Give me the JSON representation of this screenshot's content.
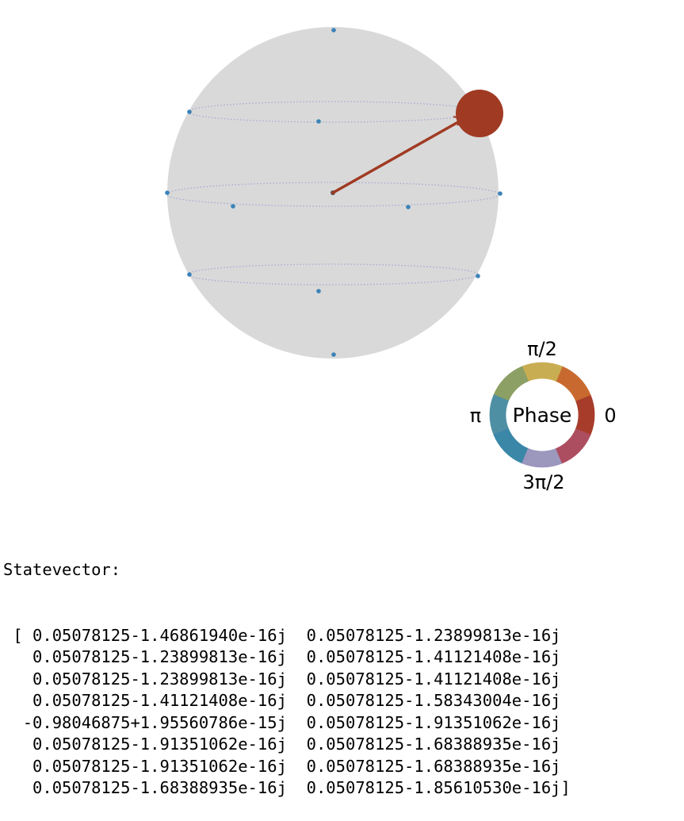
{
  "diagram": {
    "type": "qsphere",
    "state_marker_color": "#a03a23",
    "sphere_color": "#d9d9d9",
    "latitude_line_color": "#a7a9d6",
    "node_color": "#3b82b8",
    "phase_wheel": {
      "center_label": "Phase",
      "label_0": "0",
      "label_pi_2": "π/2",
      "label_pi": "π",
      "label_3pi_2": "3π/2",
      "colors": [
        "#a83c2a",
        "#c86a2f",
        "#c9ad52",
        "#8c9f64",
        "#4f8fa4",
        "#3a87a8",
        "#9c97bd",
        "#ad4e60"
      ]
    }
  },
  "output": {
    "title": "Statevector:",
    "open_bracket": " [",
    "close_bracket": "]",
    "rows": [
      [
        " 0.05078125-1.46861940e-16j",
        "  0.05078125-1.23899813e-16j"
      ],
      [
        " 0.05078125-1.23899813e-16j",
        "  0.05078125-1.41121408e-16j"
      ],
      [
        " 0.05078125-1.23899813e-16j",
        "  0.05078125-1.41121408e-16j"
      ],
      [
        " 0.05078125-1.41121408e-16j",
        "  0.05078125-1.58343004e-16j"
      ],
      [
        "-0.98046875+1.95560786e-15j",
        "  0.05078125-1.91351062e-16j"
      ],
      [
        " 0.05078125-1.91351062e-16j",
        "  0.05078125-1.68388935e-16j"
      ],
      [
        " 0.05078125-1.91351062e-16j",
        "  0.05078125-1.68388935e-16j"
      ],
      [
        " 0.05078125-1.68388935e-16j",
        "  0.05078125-1.85610530e-16j"
      ]
    ]
  }
}
